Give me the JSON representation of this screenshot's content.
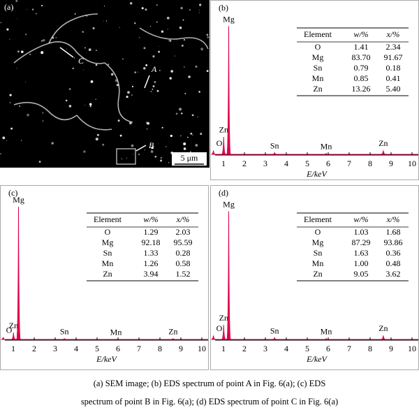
{
  "sem_panel": {
    "label": "(a)",
    "markers": [
      "C",
      "A",
      "B"
    ],
    "scale_bar": "5 μm"
  },
  "chart_data": [
    {
      "type": "spectrum",
      "panel": "(b)",
      "xlabel": "E/keV",
      "xlim": [
        0.6,
        10.3
      ],
      "xticks": [
        1,
        2,
        3,
        4,
        5,
        6,
        7,
        8,
        9,
        10
      ],
      "ylim": [
        0,
        100
      ],
      "color": "#e0004a",
      "peaks": [
        {
          "label": "O",
          "x": 0.52,
          "height": 3
        },
        {
          "label": "Zn",
          "x": 1.01,
          "height": 12
        },
        {
          "label": "Mg",
          "x": 1.25,
          "height": 85
        },
        {
          "label": "Sn",
          "x": 3.44,
          "height": 1.5
        },
        {
          "label": "Mn",
          "x": 5.9,
          "height": 1
        },
        {
          "label": "Zn",
          "x": 8.63,
          "height": 3
        }
      ],
      "table": {
        "header": [
          "Element",
          "w/%",
          "x/%"
        ],
        "rows": [
          [
            "O",
            "1.41",
            "2.34"
          ],
          [
            "Mg",
            "83.70",
            "91.67"
          ],
          [
            "Sn",
            "0.79",
            "0.18"
          ],
          [
            "Mn",
            "0.85",
            "0.41"
          ],
          [
            "Zn",
            "13.26",
            "5.40"
          ]
        ]
      }
    },
    {
      "type": "spectrum",
      "panel": "(c)",
      "xlabel": "E/keV",
      "xlim": [
        0.6,
        10.3
      ],
      "xticks": [
        1,
        2,
        3,
        4,
        5,
        6,
        7,
        8,
        9,
        10
      ],
      "ylim": [
        0,
        100
      ],
      "color": "#e0004a",
      "peaks": [
        {
          "label": "O",
          "x": 0.52,
          "height": 2
        },
        {
          "label": "Zn",
          "x": 1.01,
          "height": 5
        },
        {
          "label": "Mg",
          "x": 1.25,
          "height": 88
        },
        {
          "label": "Sn",
          "x": 3.44,
          "height": 1
        },
        {
          "label": "Mn",
          "x": 5.9,
          "height": 0.5
        },
        {
          "label": "Zn",
          "x": 8.63,
          "height": 1
        }
      ],
      "table": {
        "header": [
          "Element",
          "w/%",
          "x/%"
        ],
        "rows": [
          [
            "O",
            "1.29",
            "2.03"
          ],
          [
            "Mg",
            "92.18",
            "95.59"
          ],
          [
            "Sn",
            "1.33",
            "0.28"
          ],
          [
            "Mn",
            "1.26",
            "0.58"
          ],
          [
            "Zn",
            "3.94",
            "1.52"
          ]
        ]
      }
    },
    {
      "type": "spectrum",
      "panel": "(d)",
      "xlabel": "E/keV",
      "xlim": [
        0.6,
        10.3
      ],
      "xticks": [
        1,
        2,
        3,
        4,
        5,
        6,
        7,
        8,
        9,
        10
      ],
      "ylim": [
        0,
        100
      ],
      "color": "#e0004a",
      "peaks": [
        {
          "label": "O",
          "x": 0.52,
          "height": 3
        },
        {
          "label": "Zn",
          "x": 1.01,
          "height": 10
        },
        {
          "label": "Mg",
          "x": 1.25,
          "height": 85
        },
        {
          "label": "Sn",
          "x": 3.44,
          "height": 1.5
        },
        {
          "label": "Mn",
          "x": 5.9,
          "height": 1
        },
        {
          "label": "Zn",
          "x": 8.63,
          "height": 3
        }
      ],
      "table": {
        "header": [
          "Element",
          "w/%",
          "x/%"
        ],
        "rows": [
          [
            "O",
            "1.03",
            "1.68"
          ],
          [
            "Mg",
            "87.29",
            "93.86"
          ],
          [
            "Sn",
            "1.63",
            "0.36"
          ],
          [
            "Mn",
            "1.00",
            "0.48"
          ],
          [
            "Zn",
            "9.05",
            "3.62"
          ]
        ]
      }
    }
  ],
  "caption": [
    "(a) SEM image; (b) EDS spectrum of point A in Fig. 6(a); (c) EDS",
    "spectrum of point B in Fig. 6(a); (d) EDS spectrum of point C in Fig. 6(a)"
  ]
}
